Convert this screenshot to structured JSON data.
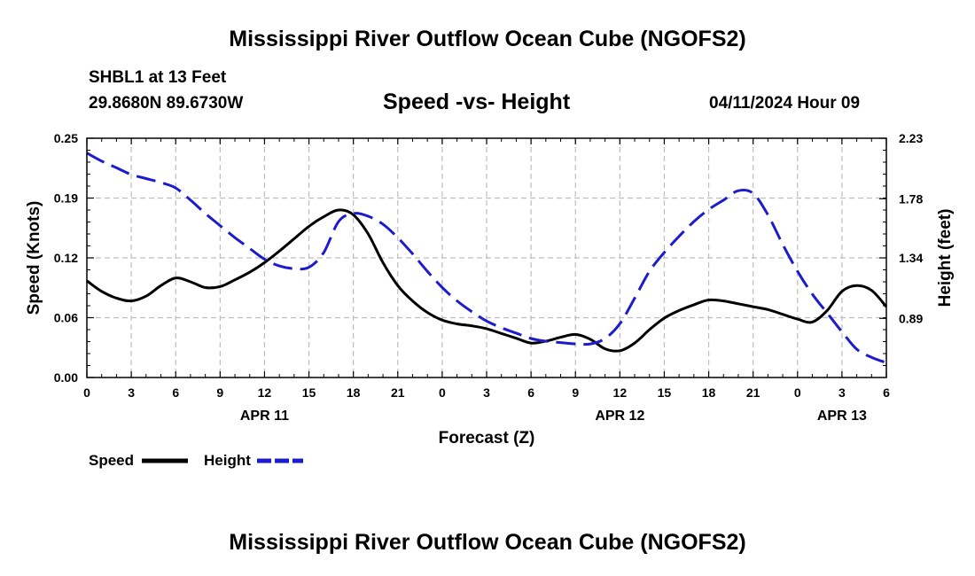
{
  "header": {
    "title": "Mississippi River Outflow Ocean Cube (NGOFS2)",
    "station": "SHBL1 at 13 Feet",
    "coordinates": "29.8680N  89.6730W",
    "subtitle": "Speed -vs- Height",
    "datestamp": "04/11/2024 Hour 09"
  },
  "footer": {
    "title": "Mississippi River Outflow Ocean Cube (NGOFS2)"
  },
  "chart_data": {
    "type": "line",
    "xlabel": "Forecast (Z)",
    "ylabel_left": "Speed (Knots)",
    "ylabel_right": "Height (feet)",
    "x_range": [
      0,
      54
    ],
    "x_ticks": [
      0,
      3,
      6,
      9,
      12,
      15,
      18,
      21,
      24,
      27,
      30,
      33,
      36,
      39,
      42,
      45,
      48,
      51,
      54
    ],
    "x_tick_labels": [
      "0",
      "3",
      "6",
      "9",
      "12",
      "15",
      "18",
      "21",
      "0",
      "3",
      "6",
      "9",
      "12",
      "15",
      "18",
      "21",
      "0",
      "3",
      "6"
    ],
    "date_labels": [
      {
        "x": 12,
        "label": "APR 11"
      },
      {
        "x": 36,
        "label": "APR 12"
      },
      {
        "x": 51,
        "label": "APR 13"
      }
    ],
    "y_left": {
      "range": [
        0,
        0.25
      ],
      "ticks": [
        0,
        0.0625,
        0.125,
        0.1875,
        0.25
      ],
      "tick_labels": [
        "0.00",
        "0.06",
        "0.12",
        "0.19",
        "0.25"
      ]
    },
    "y_right": {
      "range": [
        0.45,
        2.23
      ],
      "ticks": [
        0.89,
        1.34,
        1.78,
        2.23
      ],
      "tick_labels": [
        "0.89",
        "1.34",
        "1.78",
        "2.23"
      ]
    },
    "grid": true,
    "legend_position": "bottom-left",
    "series": [
      {
        "name": "Speed",
        "axis": "left",
        "color": "#000000",
        "style": "solid",
        "x": [
          0,
          1,
          2,
          3,
          4,
          5,
          6,
          7,
          8,
          9,
          10,
          11,
          12,
          13,
          14,
          15,
          16,
          17,
          18,
          19,
          20,
          21,
          22,
          23,
          24,
          25,
          26,
          27,
          28,
          29,
          30,
          31,
          32,
          33,
          34,
          35,
          36,
          37,
          38,
          39,
          40,
          41,
          42,
          43,
          44,
          45,
          46,
          47,
          48,
          49,
          50,
          51,
          52,
          53,
          54
        ],
        "values": [
          0.101,
          0.09,
          0.083,
          0.08,
          0.085,
          0.096,
          0.104,
          0.1,
          0.094,
          0.095,
          0.102,
          0.11,
          0.12,
          0.132,
          0.145,
          0.158,
          0.168,
          0.175,
          0.17,
          0.15,
          0.12,
          0.096,
          0.08,
          0.068,
          0.06,
          0.056,
          0.054,
          0.051,
          0.046,
          0.041,
          0.036,
          0.038,
          0.042,
          0.045,
          0.04,
          0.03,
          0.028,
          0.036,
          0.05,
          0.062,
          0.07,
          0.076,
          0.081,
          0.08,
          0.077,
          0.074,
          0.071,
          0.066,
          0.061,
          0.058,
          0.07,
          0.09,
          0.096,
          0.091,
          0.074
        ]
      },
      {
        "name": "Height",
        "axis": "right",
        "color": "#1c1ccd",
        "style": "dashed",
        "x": [
          0,
          1,
          2,
          3,
          4,
          5,
          6,
          7,
          8,
          9,
          10,
          11,
          12,
          13,
          14,
          15,
          16,
          17,
          18,
          19,
          20,
          21,
          22,
          23,
          24,
          25,
          26,
          27,
          28,
          29,
          30,
          31,
          32,
          33,
          34,
          35,
          36,
          37,
          38,
          39,
          40,
          41,
          42,
          43,
          44,
          45,
          46,
          47,
          48,
          49,
          50,
          51,
          52,
          53,
          54
        ],
        "values": [
          2.12,
          2.06,
          2.01,
          1.96,
          1.93,
          1.9,
          1.86,
          1.77,
          1.67,
          1.58,
          1.49,
          1.41,
          1.33,
          1.28,
          1.26,
          1.27,
          1.38,
          1.61,
          1.67,
          1.65,
          1.59,
          1.49,
          1.37,
          1.24,
          1.12,
          1.02,
          0.94,
          0.87,
          0.82,
          0.78,
          0.74,
          0.72,
          0.71,
          0.7,
          0.7,
          0.74,
          0.85,
          1.04,
          1.24,
          1.38,
          1.5,
          1.61,
          1.7,
          1.77,
          1.84,
          1.82,
          1.66,
          1.44,
          1.24,
          1.07,
          0.93,
          0.79,
          0.66,
          0.6,
          0.56
        ]
      }
    ]
  }
}
